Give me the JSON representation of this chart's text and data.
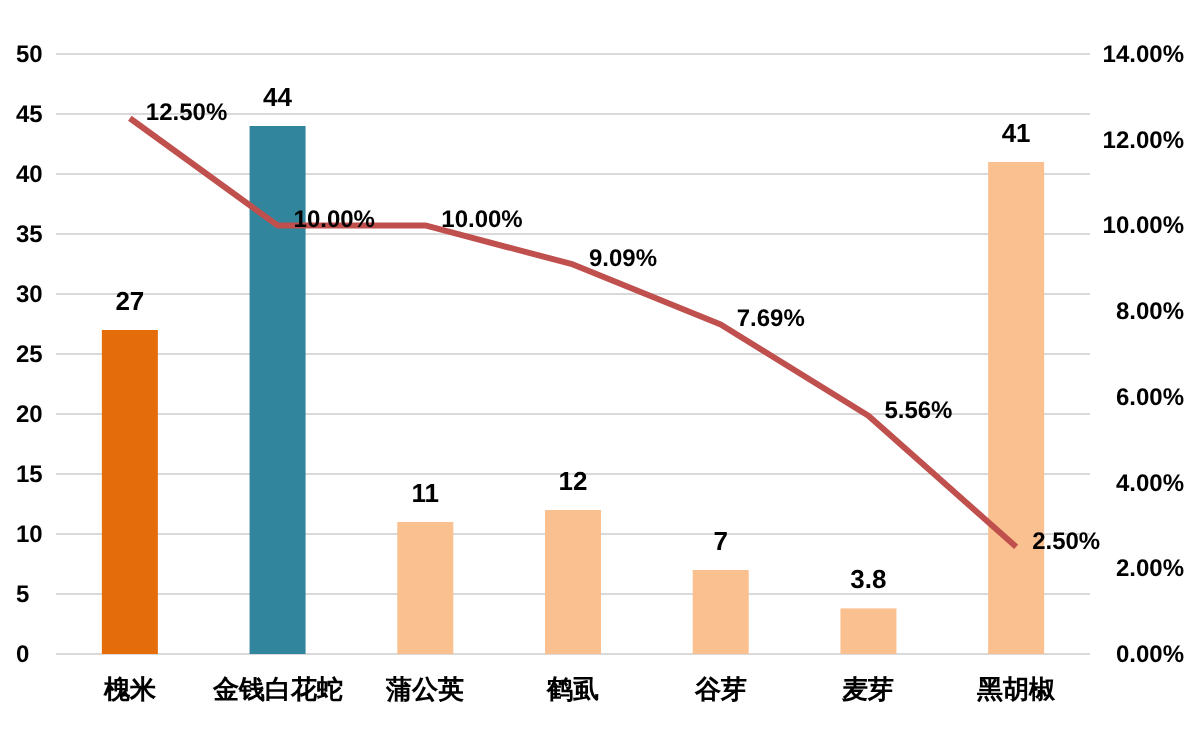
{
  "chart_data": {
    "type": "bar",
    "categories": [
      "槐米",
      "金钱白花蛇",
      "蒲公英",
      "鹤虱",
      "谷芽",
      "麦芽",
      "黑胡椒"
    ],
    "series": [
      {
        "colors": [
          "#e46c0a",
          "#31859c",
          "#fac090",
          "#fac090",
          "#fac090",
          "#fac090",
          "#fac090"
        ],
        "values": [
          27,
          44,
          11,
          12,
          7,
          3.8,
          41
        ],
        "value_labels": [
          "27",
          "44",
          "11",
          "12",
          "7",
          "3.8",
          "41"
        ]
      },
      {
        "type": "line",
        "axis": "y2",
        "color": "#c0504d",
        "values": [
          12.5,
          10,
          10,
          9.09,
          7.69,
          5.56,
          2.5
        ],
        "value_labels": [
          "12.50%",
          "10.00%",
          "10.00%",
          "9.09%",
          "7.69%",
          "5.56%",
          "2.50%"
        ]
      }
    ],
    "ylim": [
      0,
      50
    ],
    "yticks": [
      0,
      5,
      10,
      15,
      20,
      25,
      30,
      35,
      40,
      45,
      50
    ],
    "y2lim": [
      0,
      14
    ],
    "y2ticks": [
      {
        "value": 0,
        "label": "0.00%"
      },
      {
        "value": 2,
        "label": "2.00%"
      },
      {
        "value": 4,
        "label": "4.00%"
      },
      {
        "value": 6,
        "label": "6.00%"
      },
      {
        "value": 8,
        "label": "8.00%"
      },
      {
        "value": 10,
        "label": "10.00%"
      },
      {
        "value": 12,
        "label": "12.00%"
      },
      {
        "value": 14,
        "label": "14.00%"
      }
    ],
    "grid": "y",
    "marker": "none"
  }
}
